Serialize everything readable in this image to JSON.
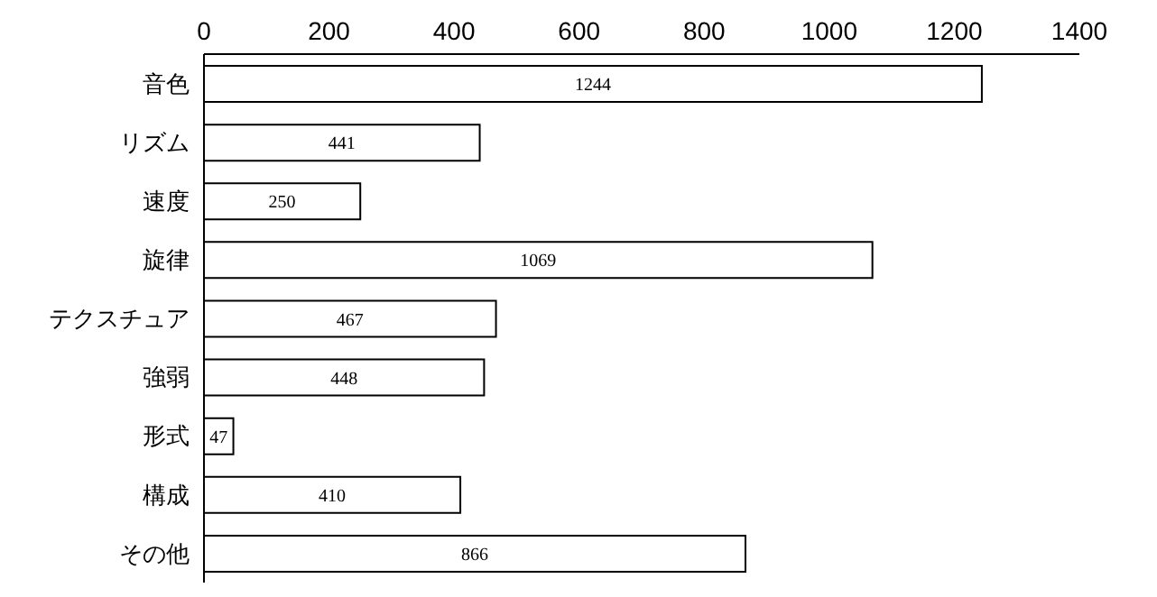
{
  "chart_data": {
    "type": "bar",
    "orientation": "horizontal",
    "categories": [
      "音色",
      "リズム",
      "速度",
      "旋律",
      "テクスチュア",
      "強弱",
      "形式",
      "構成",
      "その他"
    ],
    "values": [
      1244,
      441,
      250,
      1069,
      467,
      448,
      47,
      410,
      866
    ],
    "color": "#ffffff",
    "data_labels": true,
    "xlim": [
      0,
      1400
    ],
    "xticks": [
      0,
      200,
      400,
      600,
      800,
      1000,
      1200,
      1400
    ]
  }
}
